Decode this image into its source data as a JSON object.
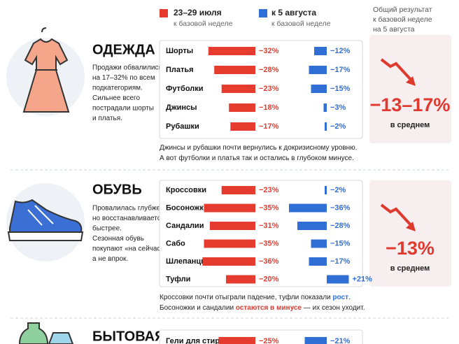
{
  "header": {
    "series_sub": [
      "к базовой неделе",
      "к базовой неделе"
    ],
    "result": [
      "Общий результат",
      "к базовой неделе",
      "на 5 августа"
    ]
  },
  "sections": [
    {
      "title": "ОДЕЖДА",
      "description": [
        "Продажи обвалились",
        "на 17–32% по всем",
        "подкатегориям.",
        "Сильнее всего",
        "пострадали шорты",
        "и платья."
      ],
      "note": [
        [
          {
            "text": "Джинсы и рубашки почти вернулись к докризисному уровню."
          }
        ],
        [
          {
            "text": "А вот футболки и платья так и остались в глубоком минусе."
          }
        ]
      ],
      "summary": {
        "value": "−13–17%",
        "label": "в среднем"
      }
    },
    {
      "title": "ОБУВЬ",
      "description": [
        "Провалилась глубже,",
        "но восстанавливается",
        "быстрее.",
        "Сезонная обувь",
        "покупают «на сейчас»,",
        "а не впрок."
      ],
      "note": [
        [
          {
            "text": "Кроссовки почти отыграли падение, туфли показали "
          },
          {
            "text": "рост",
            "color": "#2f6fd6"
          },
          {
            "text": "."
          }
        ],
        [
          {
            "text": "Босоножки и сандалии "
          },
          {
            "text": "остаются в минусе",
            "color": "#e0392e"
          },
          {
            "text": " — их сезон уходит."
          }
        ]
      ],
      "summary": {
        "value": "−13%",
        "label": "в среднем"
      }
    },
    {
      "title": "БЫТОВАЯ"
    }
  ],
  "chart_data": [
    {
      "type": "bar",
      "categories": [
        "Шорты",
        "Платья",
        "Футболки",
        "Джинсы",
        "Рубашки"
      ],
      "series": [
        {
          "name": "23–29 июля",
          "color": "#e63c2f",
          "values": [
            -32,
            -28,
            -23,
            -18,
            -17
          ],
          "value_labels": [
            "−32%",
            "−28%",
            "−23%",
            "−18%",
            "−17%"
          ]
        },
        {
          "name": "к 5 августа",
          "color": "#2f6fd6",
          "values": [
            -12,
            -17,
            -15,
            -3,
            -2
          ],
          "value_labels": [
            "−12%",
            "−17%",
            "−15%",
            "−3%",
            "−2%"
          ]
        }
      ]
    },
    {
      "type": "bar",
      "categories": [
        "Кроссовки",
        "Босоножки",
        "Сандалии",
        "Сабо",
        "Шлепанцы",
        "Туфли"
      ],
      "series": [
        {
          "color": "#e63c2f",
          "values": [
            -23,
            -35,
            -31,
            -35,
            -36,
            -20
          ],
          "value_labels": [
            "−23%",
            "−35%",
            "−31%",
            "−35%",
            "−36%",
            "−20%"
          ]
        },
        {
          "color": "#2f6fd6",
          "values": [
            -2,
            -36,
            -28,
            -15,
            -17,
            21
          ],
          "value_labels": [
            "−2%",
            "−36%",
            "−28%",
            "−15%",
            "−17%",
            "+21%"
          ]
        }
      ]
    },
    {
      "type": "bar",
      "categories": [
        "Гели для стирки"
      ],
      "series": [
        {
          "color": "#e63c2f",
          "values": [
            -25
          ],
          "value_labels": [
            "−25%"
          ]
        },
        {
          "color": "#2f6fd6",
          "values": [
            -21
          ],
          "value_labels": [
            "−21%"
          ]
        }
      ]
    }
  ]
}
